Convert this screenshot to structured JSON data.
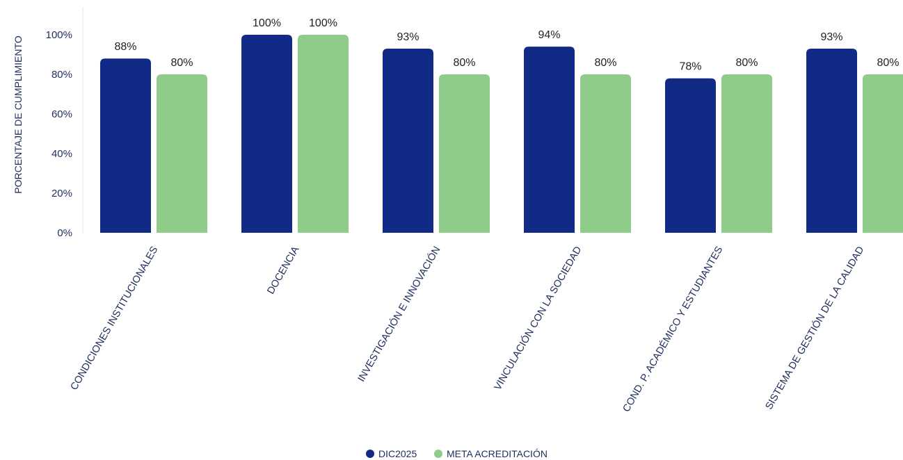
{
  "chart_data": {
    "type": "bar",
    "title": "",
    "xlabel": "",
    "ylabel": "PORCENTAJE DE CUMPLIMIENTO",
    "ylim": [
      0,
      100
    ],
    "yticks": [
      "0%",
      "20%",
      "40%",
      "60%",
      "80%",
      "100%"
    ],
    "ytick_values": [
      0,
      20,
      40,
      60,
      80,
      100
    ],
    "categories": [
      "CONDICIONES INSTITUCIONALES",
      "DOCENCIA",
      "INVESTIGACIÓN E INNOVACIÓN",
      "VINCULACIÓN CON LA SOCIEDAD",
      "COND. P. ACADÉMICO Y ESTUDIANTES",
      "SISTEMA DE GESTIÓN DE LA CALIDAD"
    ],
    "series": [
      {
        "name": "DIC2025",
        "color": "#112a86",
        "values": [
          88,
          100,
          93,
          94,
          78,
          93
        ],
        "labels": [
          "88%",
          "100%",
          "93%",
          "94%",
          "78%",
          "93%"
        ]
      },
      {
        "name": "META ACREDITACIÓN",
        "color": "#8fcc8a",
        "values": [
          80,
          100,
          80,
          80,
          80,
          80
        ],
        "labels": [
          "80%",
          "100%",
          "80%",
          "80%",
          "80%",
          "80%"
        ]
      }
    ],
    "legend_position": "bottom",
    "grid": false
  }
}
